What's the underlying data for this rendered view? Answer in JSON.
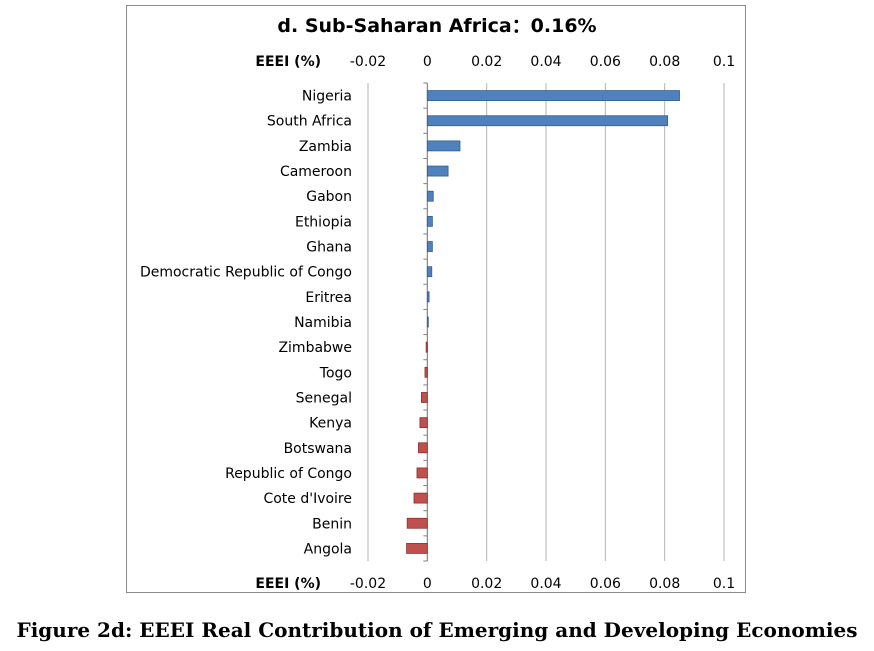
{
  "caption": "Figure 2d: EEEI Real Contribution of Emerging and Developing Economies",
  "chart_data": {
    "type": "bar",
    "orientation": "horizontal",
    "title": "d. Sub-Saharan Africa：0.16%",
    "xlabel": "EEEI (%)",
    "xlim": [
      -0.02,
      0.1
    ],
    "xticks": [
      "-0.02",
      "0",
      "0.02",
      "0.04",
      "0.06",
      "0.08",
      "0.1"
    ],
    "tick_positions_top_and_bottom": true,
    "grid": "vertical",
    "colors": {
      "positive": "#4f81bd",
      "negative": "#c0504d"
    },
    "categories": [
      "Nigeria",
      "South Africa",
      "Zambia",
      "Cameroon",
      "Gabon",
      "Ethiopia",
      "Ghana",
      "Democratic Republic of Congo",
      "Eritrea",
      "Namibia",
      "Zimbabwe",
      "Togo",
      "Senegal",
      "Kenya",
      "Botswana",
      "Republic of Congo",
      "Cote d'Ivoire",
      "Benin",
      "Angola"
    ],
    "values": [
      0.085,
      0.081,
      0.011,
      0.007,
      0.002,
      0.0017,
      0.0017,
      0.0015,
      0.0006,
      0.0003,
      -0.0004,
      -0.0008,
      -0.002,
      -0.0025,
      -0.003,
      -0.0035,
      -0.0045,
      -0.0068,
      -0.007
    ]
  }
}
